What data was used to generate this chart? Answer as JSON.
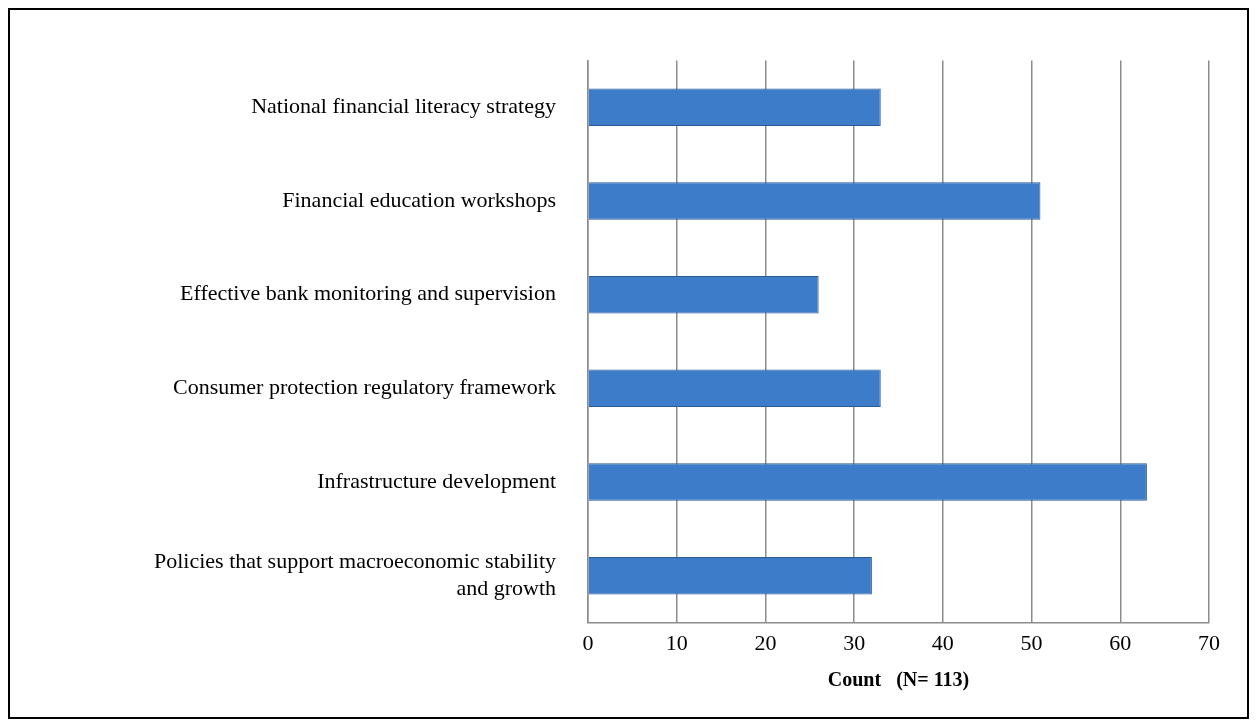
{
  "chart_data": {
    "type": "bar",
    "orientation": "horizontal",
    "xlabel": "Count   (N= 113)",
    "categories": [
      "National financial literacy strategy",
      "Financial education workshops",
      "Effective bank monitoring and supervision",
      "Consumer protection regulatory framework",
      "Infrastructure development",
      "Policies that support macroeconomic stability and growth"
    ],
    "values": [
      33,
      51,
      26,
      33,
      63,
      32
    ],
    "color": "#3d7cc9",
    "xlim": [
      0,
      70
    ],
    "xticks": [
      0,
      10,
      20,
      30,
      40,
      50,
      60,
      70
    ],
    "grid": "x",
    "legend": false
  }
}
